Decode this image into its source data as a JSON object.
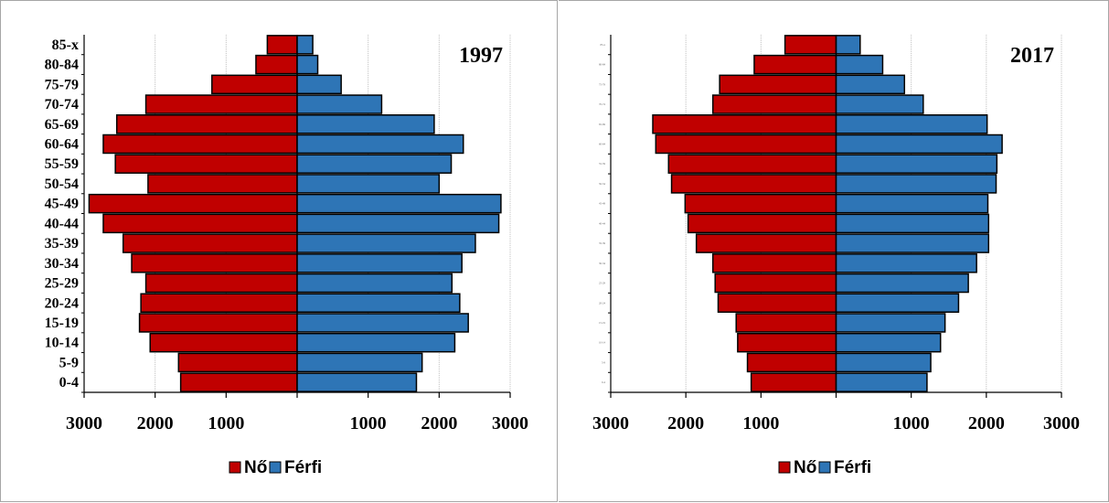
{
  "colors": {
    "female": "#c00000",
    "male": "#2e75b6",
    "grid": "#bfbfbf",
    "axis": "#000000"
  },
  "legend": {
    "female_label": "Nő",
    "male_label": "Férfi"
  },
  "chart_data": [
    {
      "type": "bar",
      "orientation": "horizontal-pyramid",
      "title": "1997",
      "categories": [
        "0-4",
        "5-9",
        "10-14",
        "15-19",
        "20-24",
        "25-29",
        "30-34",
        "35-39",
        "40-44",
        "45-49",
        "50-54",
        "55-59",
        "60-64",
        "65-69",
        "70-74",
        "75-79",
        "80-84",
        "85-x"
      ],
      "category_labels_visible": true,
      "series": [
        {
          "name": "Nő",
          "values": [
            1640,
            1670,
            2070,
            2220,
            2200,
            2130,
            2330,
            2450,
            2730,
            2930,
            2100,
            2560,
            2730,
            2540,
            2130,
            1200,
            580,
            420
          ]
        },
        {
          "name": "Férfi",
          "values": [
            1680,
            1760,
            2220,
            2410,
            2290,
            2180,
            2320,
            2510,
            2840,
            2870,
            2000,
            2170,
            2340,
            1930,
            1190,
            620,
            290,
            220
          ]
        }
      ],
      "xlim": [
        -3000,
        3000
      ],
      "xticks": [
        "3000",
        "2000",
        "1000",
        "",
        "1000",
        "2000",
        "3000"
      ],
      "grid": true,
      "legend_position": "bottom"
    },
    {
      "type": "bar",
      "orientation": "horizontal-pyramid",
      "title": "2017",
      "categories": [
        "0-4",
        "5-9",
        "10-14",
        "15-19",
        "20-24",
        "25-29",
        "30-34",
        "35-39",
        "40-44",
        "45-49",
        "50-54",
        "55-59",
        "60-64",
        "65-69",
        "70-74",
        "75-79",
        "80-84",
        "85-x"
      ],
      "category_labels_visible": false,
      "series": [
        {
          "name": "Nő",
          "values": [
            1130,
            1180,
            1310,
            1330,
            1570,
            1610,
            1640,
            1860,
            1970,
            2010,
            2190,
            2230,
            2400,
            2440,
            1640,
            1550,
            1090,
            680
          ]
        },
        {
          "name": "Férfi",
          "values": [
            1210,
            1260,
            1390,
            1450,
            1630,
            1760,
            1870,
            2030,
            2030,
            2020,
            2130,
            2140,
            2210,
            2010,
            1160,
            910,
            620,
            320
          ]
        }
      ],
      "xlim": [
        -3000,
        3000
      ],
      "xticks": [
        "3000",
        "2000",
        "1000",
        "",
        "1000",
        "2000",
        "3000"
      ],
      "grid": true,
      "legend_position": "bottom"
    }
  ]
}
